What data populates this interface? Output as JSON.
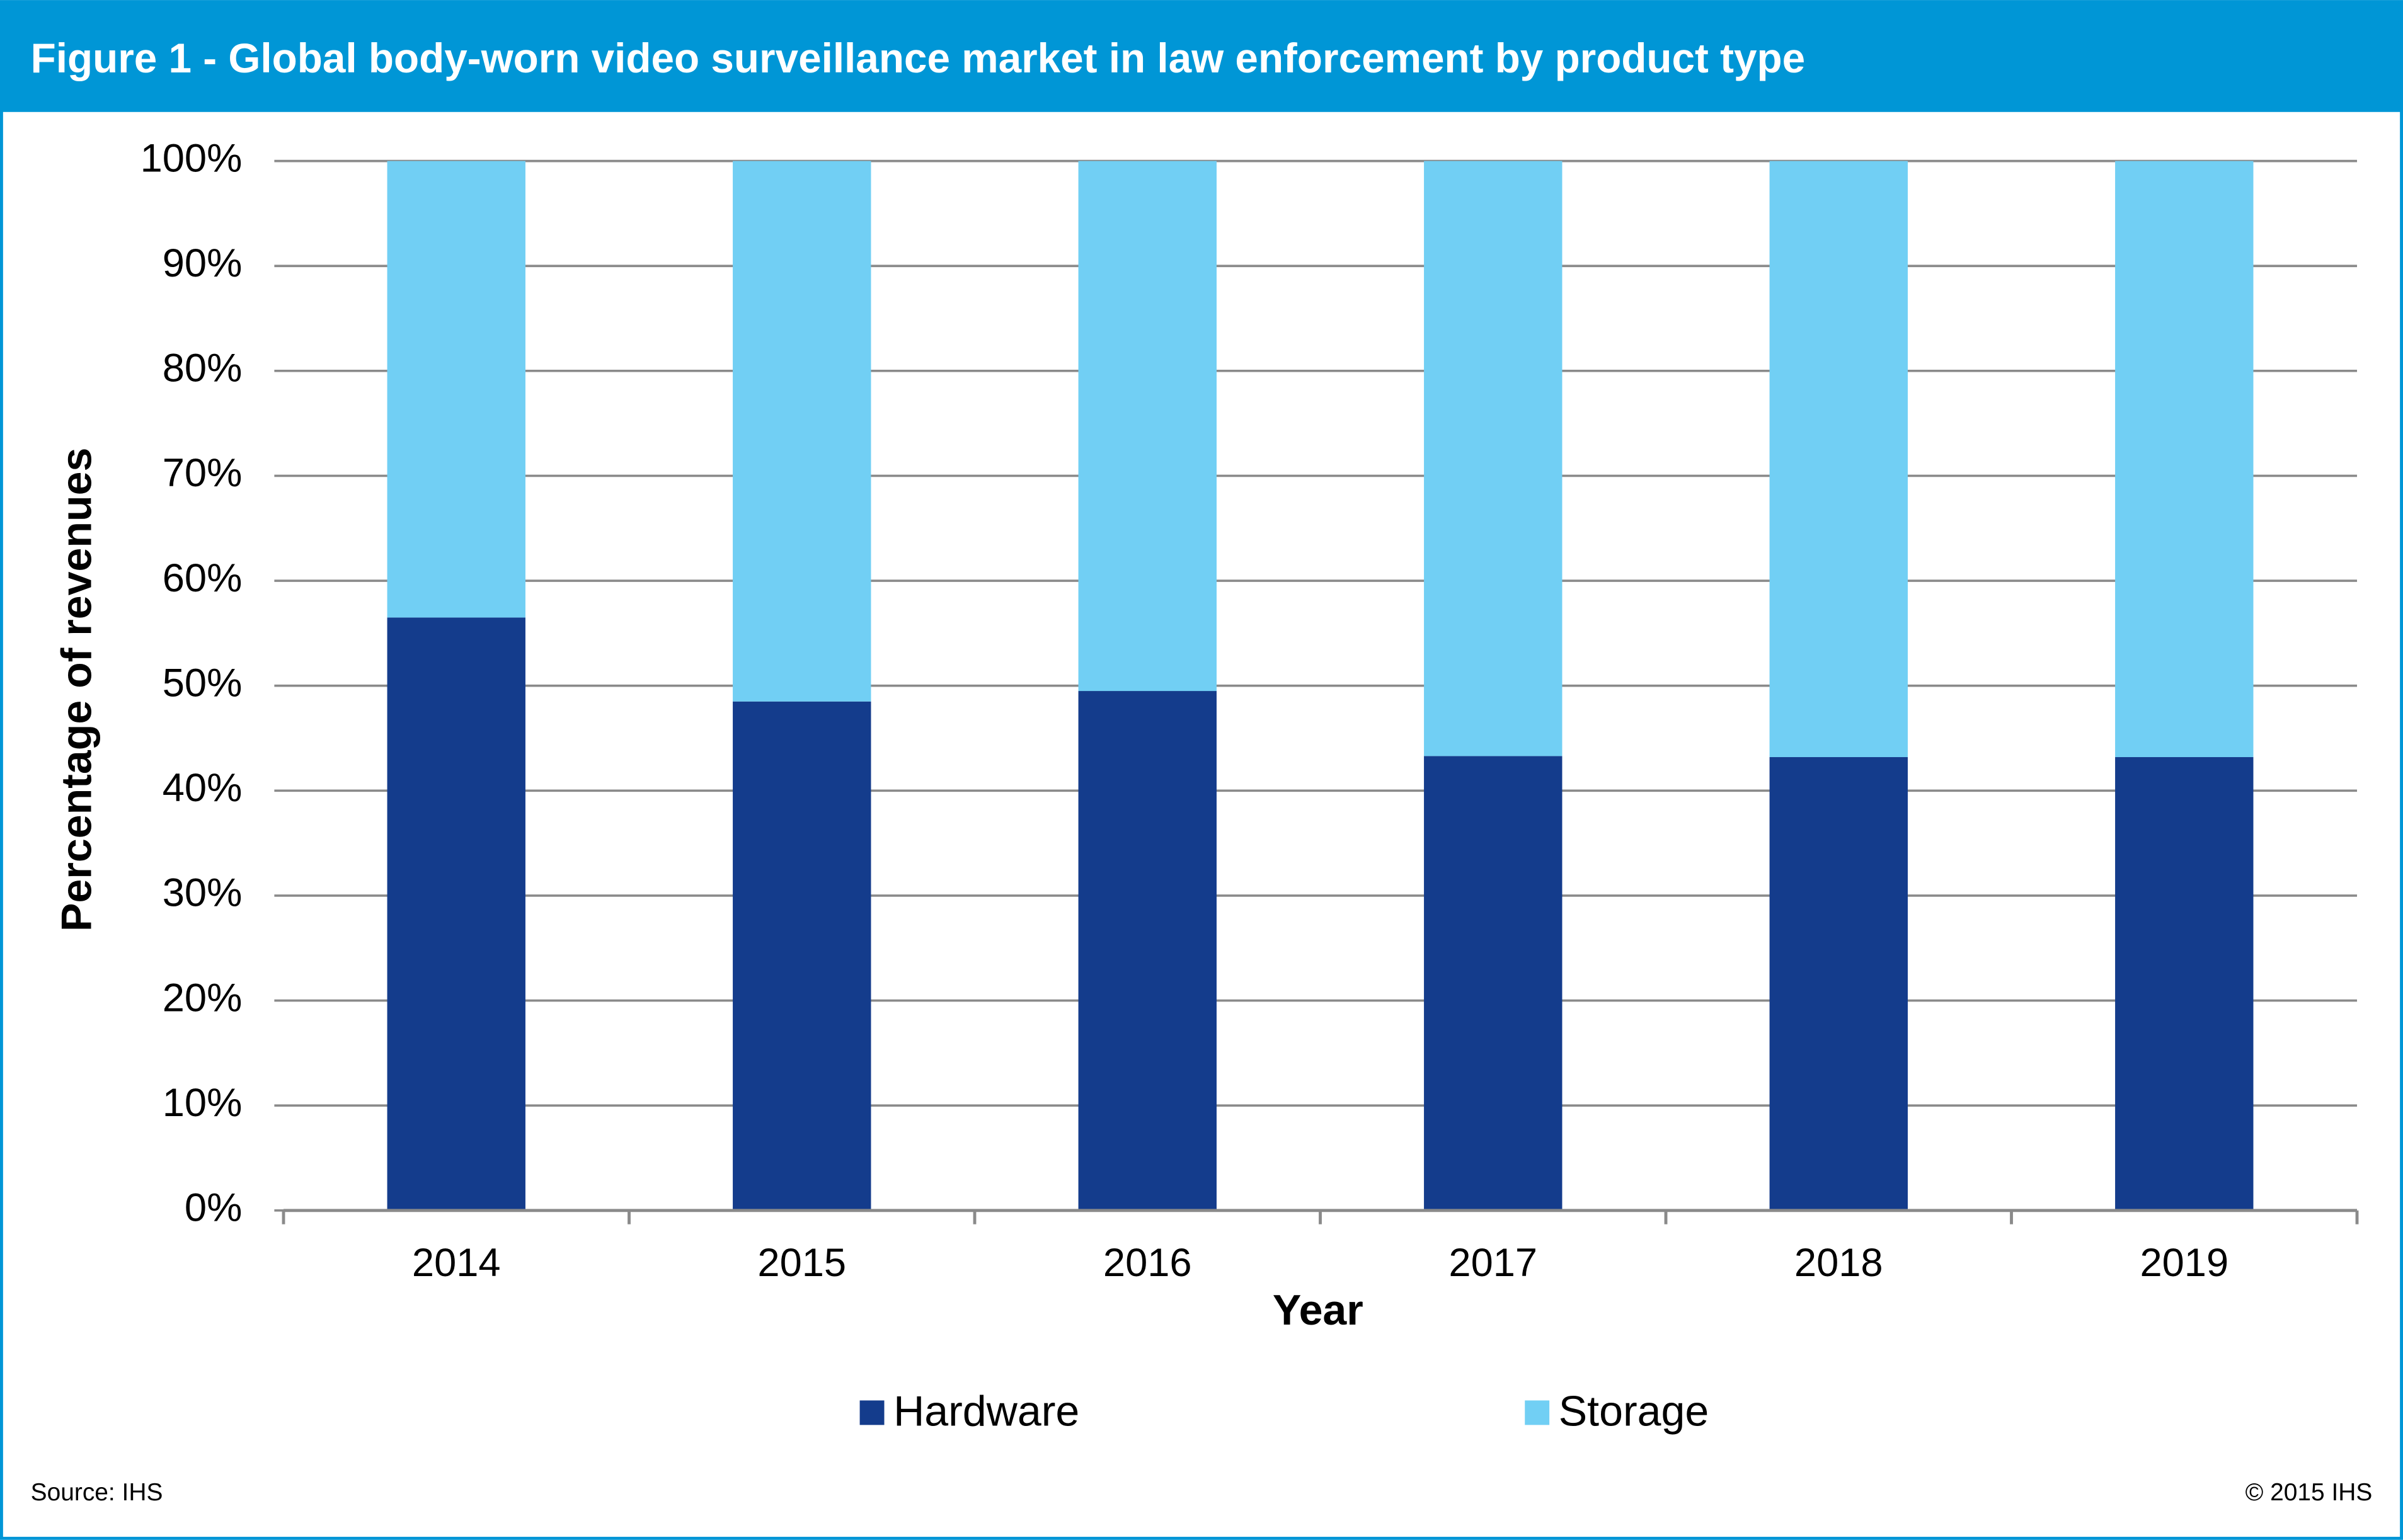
{
  "chart_data": {
    "type": "stacked_bar",
    "title": "Figure 1 - Global body-worn video surveillance market in law enforcement by product type",
    "x_label": "Year",
    "y_label": "Percentage of revenues",
    "categories": [
      "2014",
      "2015",
      "2016",
      "2017",
      "2018",
      "2019"
    ],
    "series": [
      {
        "name": "Hardware",
        "color": "#143c8c",
        "values": [
          56.5,
          48.5,
          49.5,
          43.3,
          43.2,
          43.2
        ]
      },
      {
        "name": "Storage",
        "color": "#71cff4",
        "values": [
          43.5,
          51.5,
          50.5,
          56.7,
          56.8,
          56.8
        ]
      }
    ],
    "ylim": [
      0,
      100
    ],
    "yticks": [
      {
        "value": 0,
        "label": "0%"
      },
      {
        "value": 10,
        "label": "10%"
      },
      {
        "value": 20,
        "label": "20%"
      },
      {
        "value": 30,
        "label": "30%"
      },
      {
        "value": 40,
        "label": "40%"
      },
      {
        "value": 50,
        "label": "50%"
      },
      {
        "value": 60,
        "label": "60%"
      },
      {
        "value": 70,
        "label": "70%"
      },
      {
        "value": 80,
        "label": "80%"
      },
      {
        "value": 90,
        "label": "90%"
      },
      {
        "value": 100,
        "label": "100%"
      }
    ],
    "grid": true,
    "legend": "bottom",
    "source": "Source: IHS",
    "copyright": "© 2015 IHS"
  }
}
